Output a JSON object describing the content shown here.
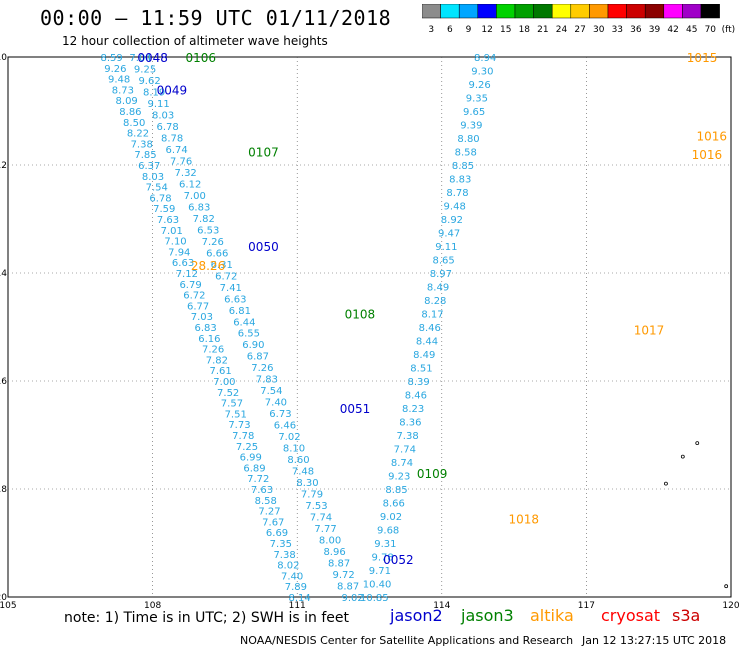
{
  "header": {
    "title": "00:00 – 11:59 UTC 01/11/2018",
    "subtitle": "12 hour collection of altimeter wave heights"
  },
  "legend": {
    "unit": "(ft)",
    "stops": [
      {
        "label": "3",
        "color": "#8c8c8c"
      },
      {
        "label": "6",
        "color": "#00e5ff"
      },
      {
        "label": "9",
        "color": "#00a6ff"
      },
      {
        "label": "12",
        "color": "#0000ff"
      },
      {
        "label": "15",
        "color": "#00d200"
      },
      {
        "label": "18",
        "color": "#00a000"
      },
      {
        "label": "21",
        "color": "#007800"
      },
      {
        "label": "24",
        "color": "#ffff00"
      },
      {
        "label": "27",
        "color": "#ffcc00"
      },
      {
        "label": "30",
        "color": "#ff9900"
      },
      {
        "label": "33",
        "color": "#ff0000"
      },
      {
        "label": "36",
        "color": "#cc0000"
      },
      {
        "label": "39",
        "color": "#8b0000"
      },
      {
        "label": "42",
        "color": "#ff00ff"
      },
      {
        "label": "45",
        "color": "#a000c8"
      },
      {
        "label": "70",
        "color": "#000000"
      }
    ]
  },
  "axes": {
    "lat_labels": [
      "-10",
      "-12",
      "-14",
      "-16",
      "-18",
      "-20"
    ],
    "lon_labels": [
      "105",
      "108",
      "111",
      "114",
      "117",
      "120"
    ]
  },
  "tracks": [
    {
      "id": "track-1",
      "lat_start": -10.0,
      "lon_start": 107.15,
      "lat_end": -20.0,
      "lon_end": 111.05,
      "color": "#2aa7e0",
      "values": [
        "8.59",
        "9.26",
        "9.48",
        "8.73",
        "8.09",
        "8.86",
        "8.50",
        "8.22",
        "7.38",
        "7.85",
        "6.37",
        "8.03",
        "7.54",
        "6.78",
        "7.59",
        "7.63",
        "7.01",
        "7.10",
        "7.94",
        "6.63",
        "7.12",
        "6.79",
        "6.72",
        "6.77",
        "7.03",
        "6.83",
        "6.16",
        "7.26",
        "7.82",
        "7.61",
        "7.00",
        "7.52",
        "7.57",
        "7.51",
        "7.73",
        "7.78",
        "7.25",
        "6.99",
        "6.89",
        "7.72",
        "7.63",
        "8.58",
        "7.27",
        "7.67",
        "6.69",
        "7.35",
        "7.38",
        "8.02",
        "7.40",
        "7.89",
        "8.14"
      ]
    },
    {
      "id": "track-2",
      "lat_start": -10.0,
      "lon_start": 107.75,
      "lat_end": -20.0,
      "lon_end": 112.15,
      "color": "#2aa7e0",
      "values": [
        "7.04",
        "9.25",
        "9.62",
        "8.19",
        "9.11",
        "8.03",
        "6.78",
        "8.78",
        "6.74",
        "7.76",
        "7.32",
        "6.12",
        "7.00",
        "6.83",
        "7.82",
        "6.53",
        "7.26",
        "6.66",
        "6.31",
        "6.72",
        "7.41",
        "6.63",
        "6.81",
        "6.44",
        "6.55",
        "6.90",
        "6.87",
        "7.26",
        "7.83",
        "7.54",
        "7.40",
        "6.73",
        "6.46",
        "7.02",
        "8.10",
        "8.60",
        "7.48",
        "8.30",
        "7.79",
        "7.53",
        "7.74",
        "7.77",
        "8.00",
        "8.96",
        "8.87",
        "9.72",
        "8.87",
        "9.02"
      ]
    },
    {
      "id": "track-3",
      "lat_start": -10.0,
      "lon_start": 114.9,
      "lat_end": -20.0,
      "lon_end": 112.6,
      "color": "#2aa7e0",
      "values": [
        "8.94",
        "9.30",
        "9.26",
        "9.35",
        "9.65",
        "9.39",
        "8.80",
        "8.58",
        "8.85",
        "8.83",
        "8.78",
        "9.48",
        "8.92",
        "9.47",
        "9.11",
        "8.65",
        "8.97",
        "8.49",
        "8.28",
        "8.17",
        "8.46",
        "8.44",
        "8.49",
        "8.51",
        "8.39",
        "8.46",
        "8.23",
        "8.36",
        "7.38",
        "7.74",
        "8.74",
        "9.23",
        "8.85",
        "8.66",
        "9.02",
        "9.68",
        "9.31",
        "9.78",
        "9.71",
        "10.40",
        "10.85"
      ]
    }
  ],
  "time_labels": [
    {
      "text": "0048",
      "lat": -10.0,
      "lon": 108.0,
      "color": "#0000cc"
    },
    {
      "text": "0106",
      "lat": -10.0,
      "lon": 109.0,
      "color": "#008000"
    },
    {
      "text": "0049",
      "lat": -10.6,
      "lon": 108.4,
      "color": "#0000cc"
    },
    {
      "text": "0107",
      "lat": -11.75,
      "lon": 110.3,
      "color": "#008000"
    },
    {
      "text": "0050",
      "lat": -13.5,
      "lon": 110.3,
      "color": "#0000cc"
    },
    {
      "text": "0108",
      "lat": -14.75,
      "lon": 112.3,
      "color": "#008000"
    },
    {
      "text": "0051",
      "lat": -16.5,
      "lon": 112.2,
      "color": "#0000cc"
    },
    {
      "text": "0109",
      "lat": -17.7,
      "lon": 113.8,
      "color": "#008000"
    },
    {
      "text": "0052",
      "lat": -19.3,
      "lon": 113.1,
      "color": "#0000cc"
    },
    {
      "text": "1015",
      "lat": -10.0,
      "lon": 119.4,
      "color": "#ff9900"
    },
    {
      "text": "1016",
      "lat": -11.45,
      "lon": 119.6,
      "color": "#ff9900"
    },
    {
      "text": "1016",
      "lat": -11.8,
      "lon": 119.5,
      "color": "#ff9900"
    },
    {
      "text": "1017",
      "lat": -15.05,
      "lon": 118.3,
      "color": "#ff9900"
    },
    {
      "text": "1018",
      "lat": -18.55,
      "lon": 115.7,
      "color": "#ff9900"
    },
    {
      "text": "28.26",
      "lat": -13.85,
      "lon": 109.15,
      "color": "#ff9900"
    }
  ],
  "footer": {
    "note": "note: 1) Time is in UTC; 2) SWH is in feet",
    "satellites": [
      {
        "name": "jason2",
        "color": "#0000cc"
      },
      {
        "name": "jason3",
        "color": "#008000"
      },
      {
        "name": "altika",
        "color": "#ff9900"
      },
      {
        "name": "cryosat",
        "color": "#ff0000"
      },
      {
        "name": "s3a",
        "color": "#cc0000"
      }
    ],
    "org": "NOAA/NESDIS Center for Satellite Applications and Research",
    "timestamp": "Jan 12 13:27:15 UTC 2018"
  }
}
